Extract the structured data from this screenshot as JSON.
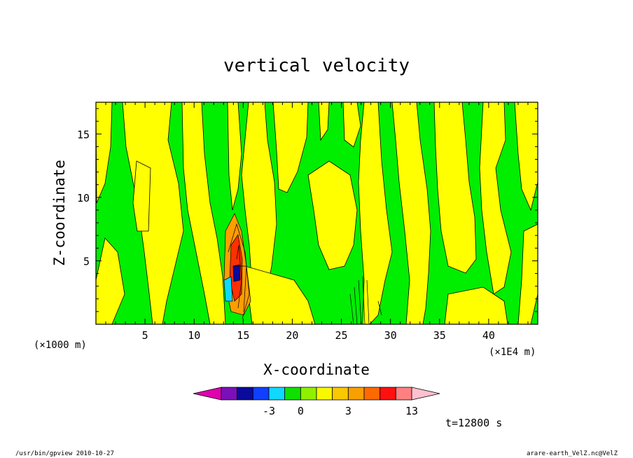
{
  "chart_data": {
    "type": "heatmap",
    "title": "vertical velocity",
    "xlabel": "X-coordinate",
    "ylabel": "Z-coordinate",
    "x_unit_left": "(×1000 m)",
    "x_unit_right": "(×1E4 m)",
    "xlim": [
      0,
      45
    ],
    "ylim": [
      0,
      17.5
    ],
    "x_ticks": [
      5,
      10,
      15,
      20,
      25,
      30,
      35,
      40
    ],
    "y_ticks": [
      5,
      10,
      15
    ],
    "time_label": "t=12800 s",
    "colorbar": {
      "colors": [
        "#e000b0",
        "#7a10b8",
        "#0a0a9c",
        "#1040ff",
        "#10d8ff",
        "#10e000",
        "#90f000",
        "#f8f800",
        "#f8c800",
        "#f8a000",
        "#ff6a00",
        "#ff1010",
        "#ff8080",
        "#ffc0d0"
      ],
      "tick_labels": [
        {
          "label": "-3",
          "index": 3
        },
        {
          "label": "0",
          "index": 5
        },
        {
          "label": "3",
          "index": 8
        },
        {
          "label": "13",
          "index": 12
        }
      ]
    },
    "green_color": "#00ee00",
    "yellow_color": "#ffff00",
    "orange_color": "#ff9d00"
  },
  "footer": {
    "left": "/usr/bin/gpview   2010-10-27",
    "right": "arare-earth_VelZ.nc@VelZ"
  }
}
